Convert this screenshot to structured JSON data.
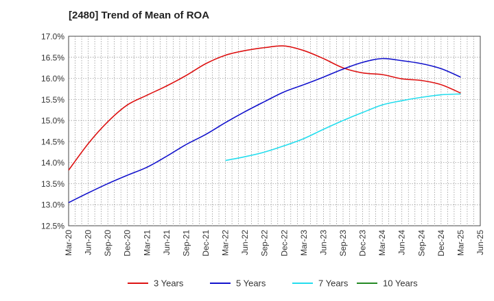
{
  "chart_data": {
    "type": "line",
    "title": "[2480]  Trend of Mean of ROA",
    "xlabel": "",
    "ylabel": "",
    "ylim": [
      12.5,
      17.0
    ],
    "y_ticks": [
      "12.5%",
      "13.0%",
      "13.5%",
      "14.0%",
      "14.5%",
      "15.0%",
      "15.5%",
      "16.0%",
      "16.5%",
      "17.0%"
    ],
    "x_ticks": [
      "Mar-20",
      "Jun-20",
      "Sep-20",
      "Dec-20",
      "Mar-21",
      "Jun-21",
      "Sep-21",
      "Dec-21",
      "Mar-22",
      "Jun-22",
      "Sep-22",
      "Dec-22",
      "Mar-23",
      "Jun-23",
      "Sep-23",
      "Dec-23",
      "Mar-24",
      "Jun-24",
      "Sep-24",
      "Dec-24",
      "Mar-25",
      "Jun-25"
    ],
    "grid": true,
    "legend_position": "bottom",
    "series": [
      {
        "name": "3 Years",
        "color": "#dd1111",
        "x": [
          "Mar-20",
          "Jun-20",
          "Sep-20",
          "Dec-20",
          "Mar-21",
          "Jun-21",
          "Sep-21",
          "Dec-21",
          "Mar-22",
          "Jun-22",
          "Sep-22",
          "Dec-22",
          "Mar-23",
          "Jun-23",
          "Sep-23",
          "Dec-23",
          "Mar-24",
          "Jun-24",
          "Sep-24",
          "Dec-24",
          "Mar-25"
        ],
        "values": [
          13.82,
          14.45,
          14.97,
          15.37,
          15.6,
          15.82,
          16.07,
          16.35,
          16.55,
          16.66,
          16.73,
          16.77,
          16.66,
          16.47,
          16.25,
          16.13,
          16.09,
          15.99,
          15.95,
          15.85,
          15.65
        ]
      },
      {
        "name": "5 Years",
        "color": "#1111cc",
        "x": [
          "Mar-20",
          "Jun-20",
          "Sep-20",
          "Dec-20",
          "Mar-21",
          "Jun-21",
          "Sep-21",
          "Dec-21",
          "Mar-22",
          "Jun-22",
          "Sep-22",
          "Dec-22",
          "Mar-23",
          "Jun-23",
          "Sep-23",
          "Dec-23",
          "Mar-24",
          "Jun-24",
          "Sep-24",
          "Dec-24",
          "Mar-25"
        ],
        "values": [
          13.05,
          13.28,
          13.5,
          13.7,
          13.89,
          14.15,
          14.43,
          14.67,
          14.95,
          15.21,
          15.45,
          15.68,
          15.85,
          16.03,
          16.22,
          16.38,
          16.47,
          16.42,
          16.35,
          16.23,
          16.03
        ]
      },
      {
        "name": "7 Years",
        "color": "#22ddee",
        "x": [
          "Mar-22",
          "Jun-22",
          "Sep-22",
          "Dec-22",
          "Mar-23",
          "Jun-23",
          "Sep-23",
          "Dec-23",
          "Mar-24",
          "Jun-24",
          "Sep-24",
          "Dec-24",
          "Mar-25"
        ],
        "values": [
          14.05,
          14.14,
          14.25,
          14.4,
          14.57,
          14.79,
          15.0,
          15.19,
          15.37,
          15.47,
          15.55,
          15.61,
          15.63
        ]
      },
      {
        "name": "10 Years",
        "color": "#228822",
        "x": [],
        "values": []
      }
    ]
  }
}
